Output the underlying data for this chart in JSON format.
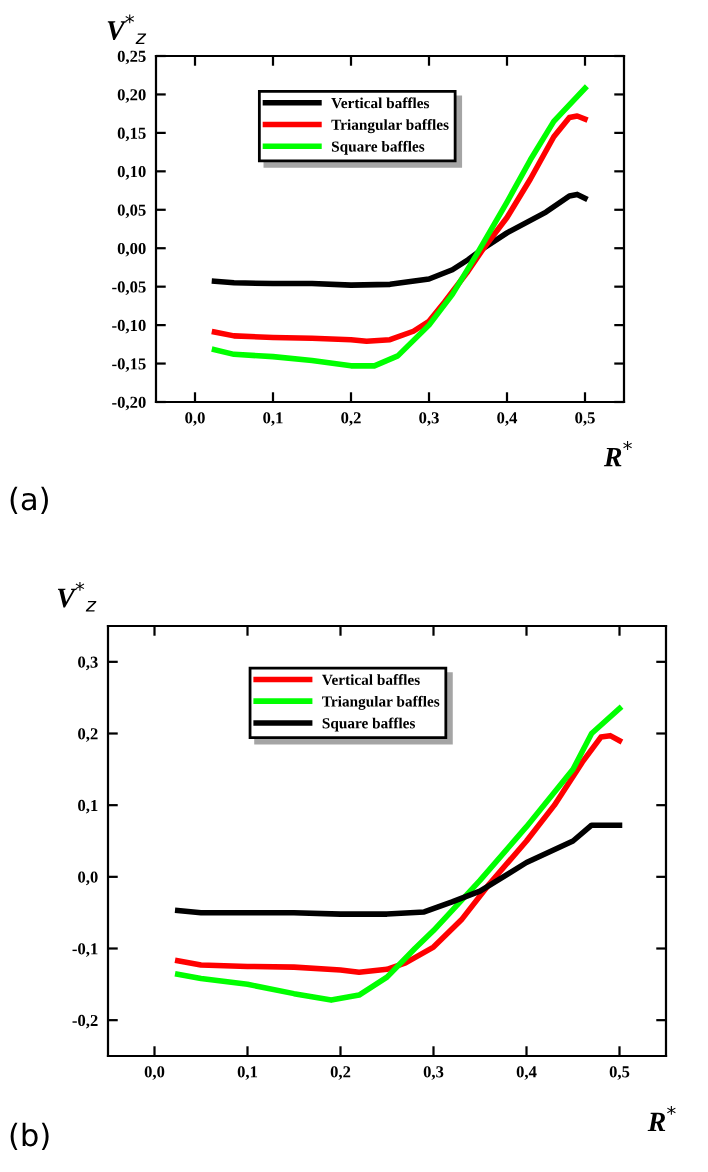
{
  "chart_data": [
    {
      "type": "line",
      "xlabel": "R$^{*}$",
      "ylabel": "V$^{*}$$_{z}$",
      "annotations": [
        "(a)"
      ],
      "legend": "top",
      "grid": false,
      "xlim": [
        -0.05,
        0.55
      ],
      "ylim": [
        -0.2,
        0.25
      ],
      "xticks": [
        {
          "value": 0.0,
          "label": "0,0"
        },
        {
          "value": 0.1,
          "label": "0,1"
        },
        {
          "value": 0.2,
          "label": "0,2"
        },
        {
          "value": 0.3,
          "label": "0,3"
        },
        {
          "value": 0.4,
          "label": "0,4"
        },
        {
          "value": 0.5,
          "label": "0,5"
        }
      ],
      "yticks": [
        {
          "value": -0.2,
          "label": "-0,20"
        },
        {
          "value": -0.15,
          "label": "-0,15"
        },
        {
          "value": -0.1,
          "label": "-0,10"
        },
        {
          "value": -0.05,
          "label": "-0,05"
        },
        {
          "value": 0.0,
          "label": "0,00"
        },
        {
          "value": 0.05,
          "label": "0,05"
        },
        {
          "value": 0.1,
          "label": "0,10"
        },
        {
          "value": 0.15,
          "label": "0,15"
        },
        {
          "value": 0.2,
          "label": "0,20"
        },
        {
          "value": 0.25,
          "label": "0,25"
        }
      ],
      "series": [
        {
          "name": "Vertical baffles",
          "color": "#000000",
          "x": [
            0.025,
            0.05,
            0.1,
            0.15,
            0.2,
            0.25,
            0.3,
            0.33,
            0.35,
            0.37,
            0.4,
            0.45,
            0.48,
            0.49,
            0.5
          ],
          "values": [
            -0.043,
            -0.045,
            -0.046,
            -0.046,
            -0.048,
            -0.047,
            -0.04,
            -0.028,
            -0.015,
            0.0,
            0.02,
            0.047,
            0.068,
            0.07,
            0.065
          ]
        },
        {
          "name": "Triangular baffles",
          "color": "#ff0000",
          "x": [
            0.025,
            0.05,
            0.1,
            0.15,
            0.2,
            0.22,
            0.25,
            0.28,
            0.3,
            0.32,
            0.35,
            0.37,
            0.4,
            0.43,
            0.46,
            0.48,
            0.49,
            0.5
          ],
          "values": [
            -0.109,
            -0.114,
            -0.116,
            -0.117,
            -0.119,
            -0.121,
            -0.119,
            -0.108,
            -0.095,
            -0.07,
            -0.03,
            0.0,
            0.04,
            0.09,
            0.145,
            0.17,
            0.172,
            0.168
          ]
        },
        {
          "name": "Square baffles",
          "color": "#00ff00",
          "x": [
            0.025,
            0.05,
            0.1,
            0.15,
            0.2,
            0.23,
            0.26,
            0.3,
            0.33,
            0.36,
            0.4,
            0.43,
            0.46,
            0.5
          ],
          "values": [
            -0.132,
            -0.138,
            -0.141,
            -0.146,
            -0.153,
            -0.153,
            -0.14,
            -0.1,
            -0.06,
            -0.01,
            0.06,
            0.115,
            0.165,
            0.208
          ]
        }
      ]
    },
    {
      "type": "line",
      "xlabel": "R$^{*}$",
      "ylabel": "V$^{*}$$_{z}$",
      "annotations": [
        "(b)"
      ],
      "legend": "top",
      "grid": false,
      "xlim": [
        -0.05,
        0.55
      ],
      "ylim": [
        -0.25,
        0.35
      ],
      "xticks": [
        {
          "value": 0.0,
          "label": "0,0"
        },
        {
          "value": 0.1,
          "label": "0,1"
        },
        {
          "value": 0.2,
          "label": "0,2"
        },
        {
          "value": 0.3,
          "label": "0,3"
        },
        {
          "value": 0.4,
          "label": "0,4"
        },
        {
          "value": 0.5,
          "label": "0,5"
        }
      ],
      "yticks": [
        {
          "value": -0.2,
          "label": "-0,2"
        },
        {
          "value": -0.1,
          "label": "-0,1"
        },
        {
          "value": 0.0,
          "label": "0,0"
        },
        {
          "value": 0.1,
          "label": "0,1"
        },
        {
          "value": 0.2,
          "label": "0,2"
        },
        {
          "value": 0.3,
          "label": "0,3"
        }
      ],
      "series": [
        {
          "name": "Vertical baffles",
          "color": "#ff0000",
          "x": [
            0.025,
            0.05,
            0.1,
            0.15,
            0.2,
            0.22,
            0.25,
            0.27,
            0.3,
            0.33,
            0.36,
            0.4,
            0.43,
            0.46,
            0.48,
            0.49,
            0.5
          ],
          "values": [
            -0.117,
            -0.123,
            -0.125,
            -0.126,
            -0.13,
            -0.133,
            -0.129,
            -0.12,
            -0.098,
            -0.06,
            -0.01,
            0.05,
            0.1,
            0.16,
            0.195,
            0.197,
            0.19
          ]
        },
        {
          "name": "Triangular baffles",
          "color": "#00ff00",
          "x": [
            0.025,
            0.05,
            0.1,
            0.15,
            0.19,
            0.22,
            0.25,
            0.28,
            0.3,
            0.35,
            0.4,
            0.45,
            0.47,
            0.5
          ],
          "values": [
            -0.136,
            -0.142,
            -0.15,
            -0.163,
            -0.172,
            -0.165,
            -0.14,
            -0.1,
            -0.075,
            -0.005,
            0.07,
            0.15,
            0.2,
            0.235
          ]
        },
        {
          "name": "Square baffles",
          "color": "#000000",
          "x": [
            0.025,
            0.05,
            0.1,
            0.15,
            0.2,
            0.25,
            0.29,
            0.32,
            0.35,
            0.4,
            0.45,
            0.47,
            0.5
          ],
          "values": [
            -0.047,
            -0.05,
            -0.05,
            -0.05,
            -0.052,
            -0.052,
            -0.049,
            -0.035,
            -0.02,
            0.02,
            0.05,
            0.072,
            0.072
          ]
        }
      ]
    }
  ]
}
